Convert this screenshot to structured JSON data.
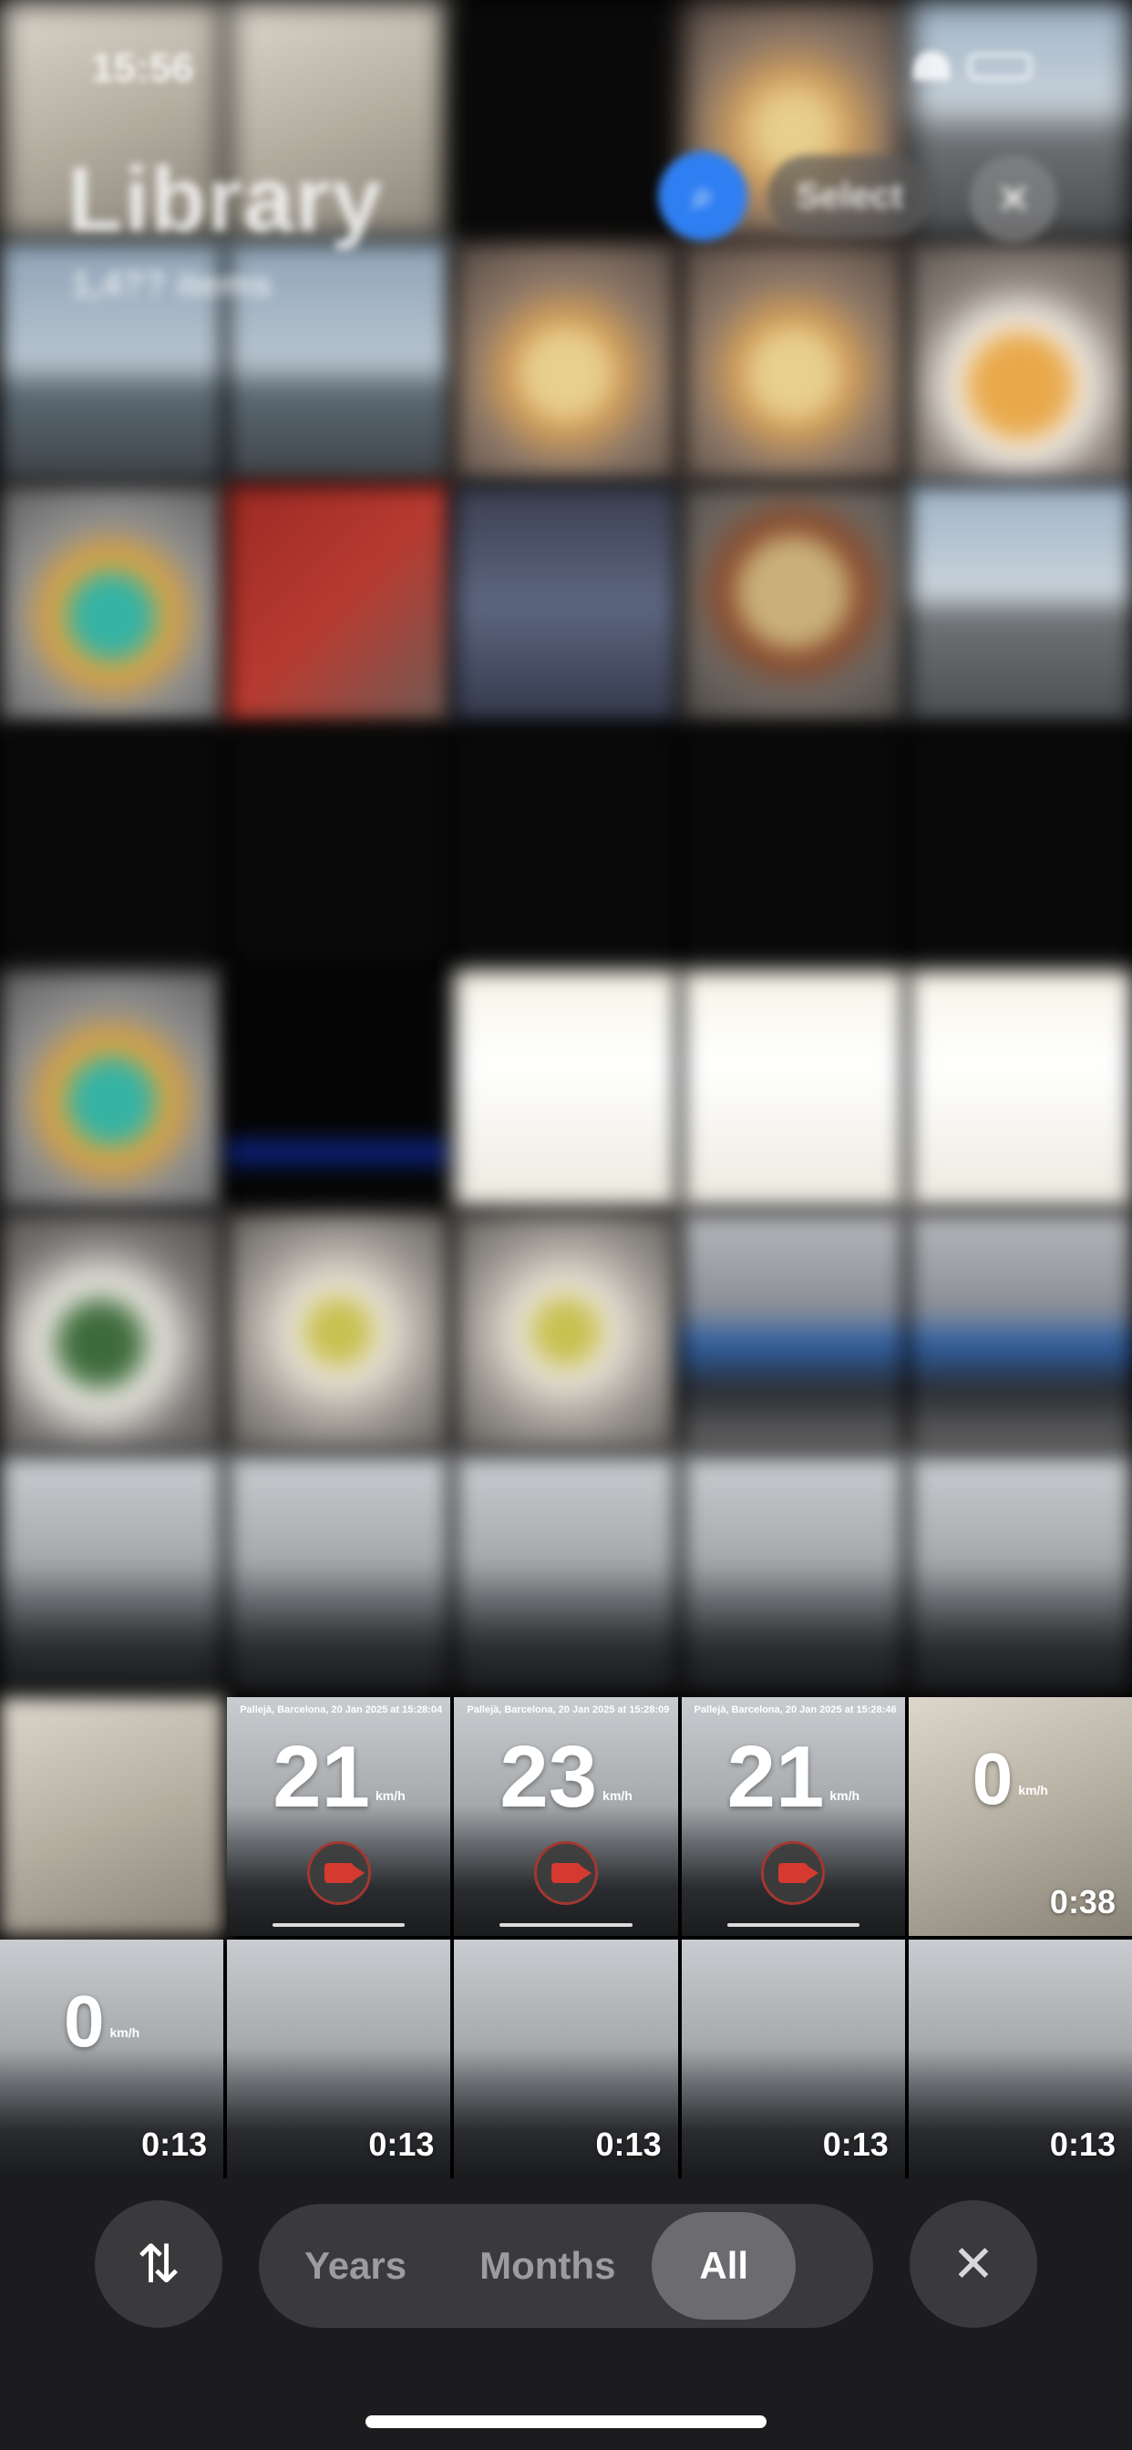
{
  "status_bar": {
    "time": "15:56"
  },
  "header": {
    "title": "Library",
    "subtitle": "1,4?? items",
    "select_label": "Select"
  },
  "videos": {
    "row1": [
      {
        "speed": "21",
        "unit": "km/h",
        "location": "Pallejà, Barcelona, 20 Jan 2025 at 15:28:04"
      },
      {
        "speed": "23",
        "unit": "km/h",
        "location": "Pallejà, Barcelona, 20 Jan 2025 at 15:28:09"
      },
      {
        "speed": "21",
        "unit": "km/h",
        "location": "Pallejà, Barcelona, 20 Jan 2025 at 15:28:46"
      },
      {
        "speed": "0",
        "unit": "km/h",
        "duration": "0:38"
      }
    ],
    "row2": [
      {
        "speed": "0",
        "unit": "km/h",
        "duration": "0:13"
      },
      {
        "duration": "0:13"
      },
      {
        "duration": "0:13"
      },
      {
        "duration": "0:13"
      },
      {
        "duration": "0:13"
      }
    ]
  },
  "toolbar": {
    "sort_icon": "arrow-up-down-icon",
    "segments": [
      "Years",
      "Months",
      "All"
    ],
    "active_segment": "All",
    "close_icon": "close-icon"
  },
  "colors": {
    "accent": "#2f7ff2",
    "toolbar_bg": "#1c1c1f",
    "record_red": "#d43a2f"
  }
}
